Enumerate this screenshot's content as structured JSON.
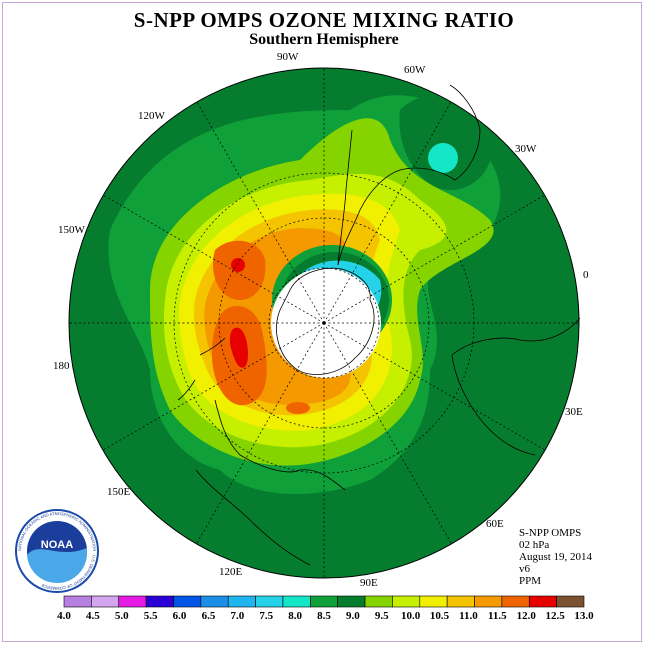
{
  "title": "S-NPP OMPS OZONE MIXING RATIO",
  "subtitle": "Southern Hemisphere",
  "longitude_labels": {
    "lon_90w": "90W",
    "lon_60w": "60W",
    "lon_30w": "30W",
    "lon_0": "0",
    "lon_30e": "30E",
    "lon_60e": "60E",
    "lon_90e": "90E",
    "lon_120e": "120E",
    "lon_150e": "150E",
    "lon_180": "180",
    "lon_150w": "150W",
    "lon_120w": "120W"
  },
  "info": {
    "instrument": "S-NPP OMPS",
    "pressure": "02 hPa",
    "date": "August 19, 2014",
    "version": "v6",
    "units": "PPM"
  },
  "logo": {
    "text": "NOAA",
    "ring_text": "NATIONAL OCEANIC AND ATMOSPHERIC ADMINISTRATION · U.S. DEPARTMENT OF COMMERCE"
  },
  "colorbar": {
    "labels": [
      "4.0",
      "4.5",
      "5.0",
      "5.5",
      "6.0",
      "6.5",
      "7.0",
      "7.5",
      "8.0",
      "8.5",
      "9.0",
      "9.5",
      "10.0",
      "10.5",
      "11.0",
      "11.5",
      "12.0",
      "12.5",
      "13.0"
    ],
    "colors": [
      "#b77fe0",
      "#d4a6f0",
      "#e61ce6",
      "#2a00d6",
      "#0055e8",
      "#1b8fe8",
      "#1fb6f0",
      "#26d2e8",
      "#14e6c8",
      "#0fa03a",
      "#067d2e",
      "#85d400",
      "#c6f000",
      "#f0f000",
      "#f4c400",
      "#f49a00",
      "#f06400",
      "#e60000",
      "#7a5230"
    ]
  },
  "chart_data": {
    "type": "heatmap",
    "projection": "south-polar-stereographic",
    "variable": "ozone mixing ratio",
    "units": "PPM",
    "pressure_level": "02 hPa",
    "date": "August 19, 2014",
    "value_range": [
      4.0,
      13.0
    ],
    "regions": [
      {
        "description": "outer band, mid latitudes",
        "value_range": [
          8.0,
          8.5
        ]
      },
      {
        "description": "wide ring around pole",
        "value_range": [
          9.0,
          11.5
        ]
      },
      {
        "description": "maxima south of Australia / near 120E-180",
        "value_range": [
          12.0,
          12.5
        ]
      },
      {
        "description": "edge of polar night region",
        "value_range": [
          7.0,
          8.0
        ]
      },
      {
        "description": "isolated low near 45W",
        "value_range": [
          7.5,
          8.0
        ]
      }
    ]
  }
}
